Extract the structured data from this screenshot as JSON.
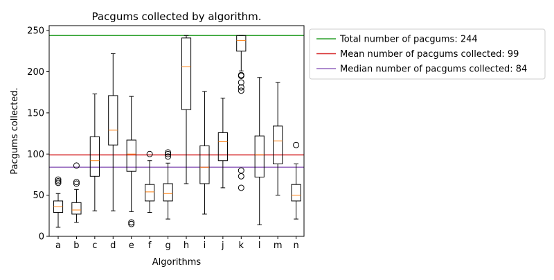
{
  "chart_data": {
    "type": "box",
    "title": "Pacgums collected by algorithm.",
    "xlabel": "Algorithms",
    "ylabel": "Pacgums collected.",
    "ylim": [
      0,
      256
    ],
    "yticks": [
      0,
      50,
      100,
      150,
      200,
      250
    ],
    "grid": false,
    "legend_position": "outside-right-top",
    "categories": [
      "a",
      "b",
      "c",
      "d",
      "e",
      "f",
      "g",
      "h",
      "i",
      "j",
      "k",
      "l",
      "m",
      "n"
    ],
    "boxes": [
      {
        "label": "a",
        "whislo": 11,
        "q1": 29,
        "med": 36,
        "q3": 43,
        "whishi": 52,
        "fliers": [
          65,
          67,
          69
        ]
      },
      {
        "label": "b",
        "whislo": 17,
        "q1": 27,
        "med": 32,
        "q3": 41,
        "whishi": 57,
        "fliers": [
          64,
          66,
          86
        ]
      },
      {
        "label": "c",
        "whislo": 31,
        "q1": 73,
        "med": 92,
        "q3": 121,
        "whishi": 173,
        "fliers": []
      },
      {
        "label": "d",
        "whislo": 31,
        "q1": 111,
        "med": 129,
        "q3": 171,
        "whishi": 222,
        "fliers": []
      },
      {
        "label": "e",
        "whislo": 30,
        "q1": 79,
        "med": 100,
        "q3": 117,
        "whishi": 170,
        "fliers": [
          15,
          17
        ]
      },
      {
        "label": "f",
        "whislo": 29,
        "q1": 43,
        "med": 54,
        "q3": 63,
        "whishi": 92,
        "fliers": [
          100
        ]
      },
      {
        "label": "g",
        "whislo": 21,
        "q1": 43,
        "med": 52,
        "q3": 64,
        "whishi": 89,
        "fliers": [
          97,
          100,
          102
        ]
      },
      {
        "label": "h",
        "whislo": 64,
        "q1": 154,
        "med": 206,
        "q3": 241,
        "whishi": 244,
        "fliers": []
      },
      {
        "label": "i",
        "whislo": 27,
        "q1": 64,
        "med": 84,
        "q3": 110,
        "whishi": 176,
        "fliers": []
      },
      {
        "label": "j",
        "whislo": 59,
        "q1": 92,
        "med": 115,
        "q3": 126,
        "whishi": 168,
        "fliers": []
      },
      {
        "label": "k",
        "whislo": 201,
        "q1": 225,
        "med": 238,
        "q3": 244,
        "whishi": 244,
        "fliers": [
          59,
          73,
          80,
          177,
          181,
          187,
          195,
          196
        ]
      },
      {
        "label": "l",
        "whislo": 14,
        "q1": 72,
        "med": 99,
        "q3": 122,
        "whishi": 193,
        "fliers": []
      },
      {
        "label": "m",
        "whislo": 50,
        "q1": 88,
        "med": 116,
        "q3": 134,
        "whishi": 187,
        "fliers": []
      },
      {
        "label": "n",
        "whislo": 21,
        "q1": 43,
        "med": 50,
        "q3": 63,
        "whishi": 88,
        "fliers": [
          111
        ]
      }
    ],
    "reference_lines": [
      {
        "name": "Total number of pacgums: 244",
        "y": 244,
        "color": "#2ca02c"
      },
      {
        "name": "Mean number of pacgums collected: 99",
        "y": 99,
        "color": "#d62728"
      },
      {
        "name": "Median number of pacgums collected: 84",
        "y": 84,
        "color": "#9467bd"
      }
    ],
    "colors": {
      "box": "#000000",
      "median": "#ff7f0e",
      "flier": "#000000"
    }
  }
}
